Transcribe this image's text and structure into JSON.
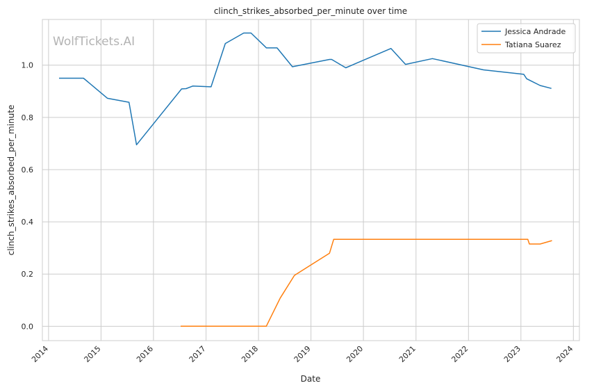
{
  "chart_data": {
    "type": "line",
    "title": "clinch_strikes_absorbed_per_minute over time",
    "xlabel": "Date",
    "ylabel": "clinch_strikes_absorbed_per_minute",
    "watermark": "WolfTickets.AI",
    "grid": true,
    "legend_position": "top-right",
    "xlim": [
      "2013-11-19",
      "2024-02-12"
    ],
    "ylim": [
      -0.055,
      1.175
    ],
    "x_ticks": [
      "2014",
      "2015",
      "2016",
      "2017",
      "2018",
      "2019",
      "2020",
      "2021",
      "2022",
      "2023",
      "2024"
    ],
    "y_ticks": [
      "0.0",
      "0.2",
      "0.4",
      "0.6",
      "0.8",
      "1.0"
    ],
    "series": [
      {
        "name": "Jessica Andrade",
        "color": "#1f77b4",
        "points": [
          [
            "2014-03-15",
            0.95
          ],
          [
            "2014-09-01",
            0.95
          ],
          [
            "2015-02-15",
            0.873
          ],
          [
            "2015-07-15",
            0.858
          ],
          [
            "2015-09-05",
            0.695
          ],
          [
            "2016-07-15",
            0.909
          ],
          [
            "2016-08-15",
            0.91
          ],
          [
            "2016-09-30",
            0.92
          ],
          [
            "2017-02-05",
            0.917
          ],
          [
            "2017-05-15",
            1.083
          ],
          [
            "2017-09-20",
            1.123
          ],
          [
            "2017-11-10",
            1.123
          ],
          [
            "2018-02-25",
            1.066
          ],
          [
            "2018-05-10",
            1.066
          ],
          [
            "2018-08-25",
            0.994
          ],
          [
            "2019-05-10",
            1.022
          ],
          [
            "2019-05-25",
            1.022
          ],
          [
            "2019-08-31",
            0.99
          ],
          [
            "2020-07-11",
            1.064
          ],
          [
            "2020-10-20",
            1.003
          ],
          [
            "2021-04-25",
            1.025
          ],
          [
            "2022-04-16",
            0.982
          ],
          [
            "2023-01-21",
            0.965
          ],
          [
            "2023-02-10",
            0.948
          ],
          [
            "2023-05-15",
            0.922
          ],
          [
            "2023-08-01",
            0.911
          ]
        ]
      },
      {
        "name": "Tatiana Suarez",
        "color": "#ff7f0e",
        "points": [
          [
            "2016-07-08",
            0.0
          ],
          [
            "2018-02-24",
            0.0
          ],
          [
            "2018-06-01",
            0.108
          ],
          [
            "2018-09-08",
            0.195
          ],
          [
            "2019-05-10",
            0.28
          ],
          [
            "2019-06-08",
            0.333
          ],
          [
            "2023-02-18",
            0.333
          ],
          [
            "2023-03-01",
            0.315
          ],
          [
            "2023-05-15",
            0.315
          ],
          [
            "2023-08-05",
            0.328
          ]
        ]
      }
    ]
  }
}
